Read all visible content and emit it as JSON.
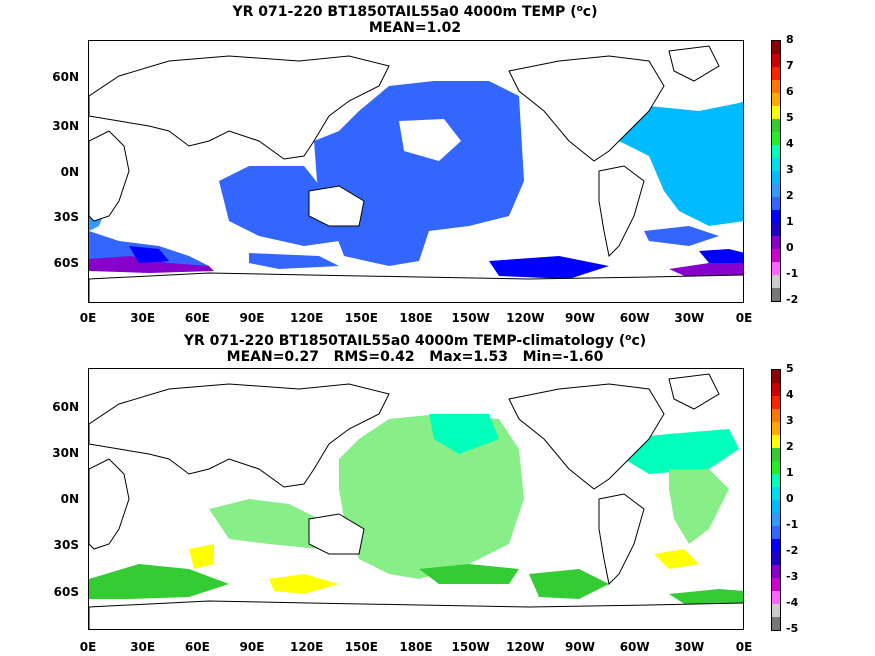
{
  "map1": {
    "title_prefix": "YR 071-220 BT1850TAIL55a0 4000m TEMP (",
    "title_unit_sup": "o",
    "title_suffix": "c)",
    "subtitle": "MEAN=1.02",
    "lat_labels": [
      "60N",
      "30N",
      "0N",
      "30S",
      "60S"
    ],
    "lon_labels": [
      "0E",
      "30E",
      "60E",
      "90E",
      "120E",
      "150E",
      "180E",
      "150W",
      "120W",
      "90W",
      "60W",
      "30W",
      "0E"
    ],
    "colorbar": {
      "labels": [
        "8",
        "7",
        "6",
        "5",
        "4",
        "3",
        "2",
        "1",
        "0",
        "-1",
        "-2"
      ],
      "colors": [
        "#8b0000",
        "#cc0000",
        "#ff2200",
        "#ff7700",
        "#ffaa00",
        "#ffff00",
        "#33cc33",
        "#22ee22",
        "#00ffbb",
        "#00ddee",
        "#00bbff",
        "#3399ff",
        "#3366ff",
        "#0000ff",
        "#2200cc",
        "#8800cc",
        "#cc00cc",
        "#ff66ff",
        "#cccccc",
        "#777777"
      ]
    }
  },
  "map2": {
    "title_prefix": "YR 071-220 BT1850TAIL55a0 4000m TEMP-climatology (",
    "title_unit_sup": "o",
    "title_suffix": "c)",
    "subtitle": "MEAN=0.27   RMS=0.42   Max=1.53   Min=-1.60",
    "lat_labels": [
      "60N",
      "30N",
      "0N",
      "30S",
      "60S"
    ],
    "lon_labels": [
      "0E",
      "30E",
      "60E",
      "90E",
      "120E",
      "150E",
      "180E",
      "150W",
      "120W",
      "90W",
      "60W",
      "30W",
      "0E"
    ],
    "colorbar": {
      "labels": [
        "5",
        "4",
        "3",
        "2",
        "1",
        "0",
        "-1",
        "-2",
        "-3",
        "-4",
        "-5"
      ],
      "colors": [
        "#8b0000",
        "#cc0000",
        "#ff2200",
        "#ff7700",
        "#ffaa00",
        "#ffff00",
        "#33cc33",
        "#22ee22",
        "#00ffbb",
        "#00ddee",
        "#00bbff",
        "#3399ff",
        "#3366ff",
        "#0000ff",
        "#2200cc",
        "#8800cc",
        "#cc00cc",
        "#ff66ff",
        "#cccccc",
        "#777777"
      ]
    }
  }
}
